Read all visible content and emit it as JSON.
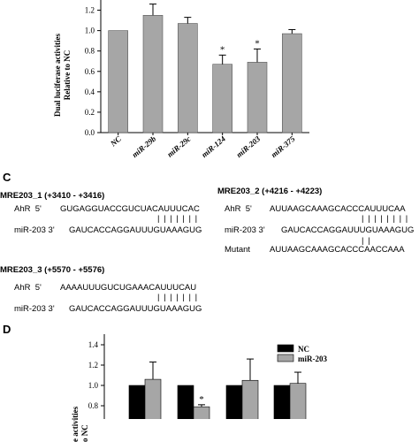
{
  "panel_b": {
    "chart_data": {
      "type": "bar",
      "ylabel_line1": "Dual luciferase activities",
      "ylabel_line2": "Relative to NC",
      "categories": [
        "NC",
        "miR-29b",
        "miR-29c",
        "miR-124",
        "miR-203",
        "miR-375"
      ],
      "values": [
        1.0,
        1.15,
        1.07,
        0.67,
        0.69,
        0.97
      ],
      "errors": [
        0.0,
        0.11,
        0.06,
        0.09,
        0.13,
        0.04
      ],
      "significance": [
        "",
        "",
        "",
        "*",
        "*",
        ""
      ],
      "yticks": [
        "0.0",
        "0.2",
        "0.4",
        "0.6",
        "0.8",
        "1.0",
        "1.2"
      ],
      "ylim": [
        0,
        1.3
      ],
      "bar_color": "#a6a6a6"
    }
  },
  "panel_c": {
    "letter": "C",
    "site1": {
      "title": "MRE203_1 (+3410 - +3416)",
      "row1_label": "AhR  5'",
      "row1_seq": "GUGAGGUACCGUCUACAUUUCAC",
      "pairing": "| | | | | | |",
      "row2_label": "miR-203 3'",
      "row2_seq": "GAUCACCAGGAUUUGUAAAGUG"
    },
    "site2": {
      "title": "MRE203_2 (+4216 - +4223)",
      "row1_label": "AhR  5'",
      "row1_seq": "AUUAAGCAAAGCACCCAUUUCAA",
      "pairing": "| | | | | | | |",
      "row2_label": "miR-203 3'",
      "row2_seq": "GAUCACCAGGAUUUGUAAAGUG",
      "row3_label": "Mutant",
      "row3_seq": "AUUAAGCAAAGCACCCAACCAAA"
    },
    "site3": {
      "title": "MRE203_3 (+5570 - +5576)",
      "row1_label": "AhR  5'",
      "row1_seq": "AAAAUUUGUCUGAAACAUUUCAU",
      "pairing": "| | | | | | |",
      "row2_label": "miR-203 3'",
      "row2_seq": "GAUCACCAGGAUUUGUAAAGUG"
    }
  },
  "panel_d": {
    "letter": "D",
    "chart_data": {
      "type": "bar",
      "ylabel_line1": "e activities",
      "ylabel_line2": "o NC",
      "yticks": [
        "0.8",
        "1.0",
        "1.2",
        "1.4"
      ],
      "ylim": [
        0.8,
        1.4
      ],
      "legend_position": "top-right",
      "series": [
        {
          "name": "NC",
          "color": "#000000",
          "values": [
            1.0,
            1.0,
            1.0,
            1.0
          ],
          "errors": [
            0.0,
            0.0,
            0.0,
            0.0
          ]
        },
        {
          "name": "miR-203",
          "color": "#a6a6a6",
          "values": [
            1.06,
            0.79,
            1.05,
            1.02
          ],
          "errors": [
            0.17,
            0.02,
            0.21,
            0.11
          ]
        }
      ],
      "significance": [
        "",
        "*",
        "",
        ""
      ]
    }
  }
}
